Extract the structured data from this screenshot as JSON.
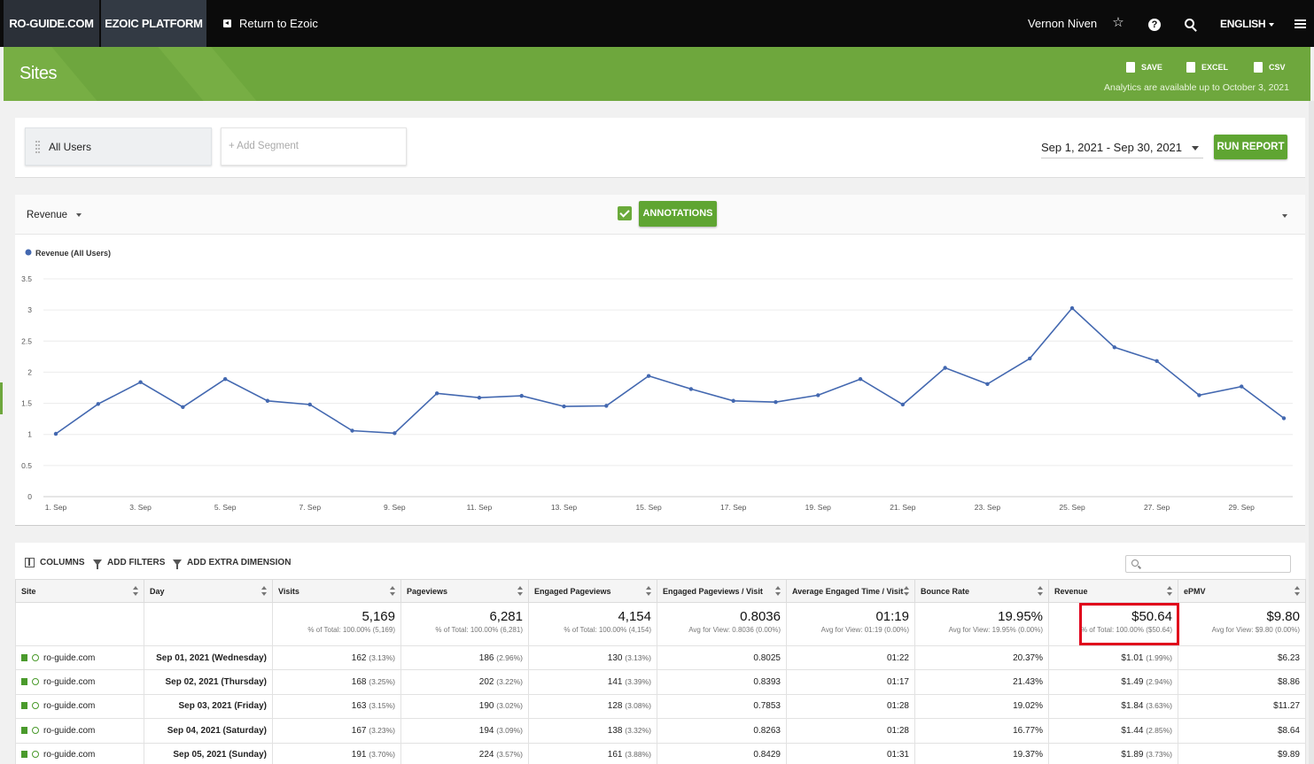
{
  "topnav": {
    "site_tab": "RO-GUIDE.COM",
    "platform_tab": "EZOIC PLATFORM",
    "return_link": "Return to Ezoic",
    "user_name": "Vernon Niven",
    "language": "ENGLISH",
    "icons": [
      "star-icon",
      "help-icon",
      "search-icon",
      "menu-icon"
    ]
  },
  "header": {
    "title": "Sites",
    "save_label": "SAVE",
    "excel_label": "EXCEL",
    "csv_label": "CSV",
    "availability": "Analytics are available up to October 3, 2021"
  },
  "segments": {
    "active": "All Users",
    "add_placeholder": "+ Add Segment",
    "date_range": "Sep 1, 2021 - Sep 30, 2021",
    "run_label": "RUN REPORT"
  },
  "chart_toolbar": {
    "metric": "Revenue",
    "annotations_label": "ANNOTATIONS",
    "annotations_checked": true
  },
  "chart_data": {
    "type": "line",
    "legend_label": "Revenue (All Users)",
    "series": [
      {
        "name": "Revenue (All Users)",
        "color": "#4368b0",
        "values": [
          1.01,
          1.49,
          1.84,
          1.44,
          1.89,
          1.54,
          1.48,
          1.06,
          1.02,
          1.66,
          1.59,
          1.62,
          1.45,
          1.46,
          1.94,
          1.73,
          1.54,
          1.52,
          1.63,
          1.89,
          1.48,
          2.07,
          1.81,
          2.22,
          3.03,
          2.4,
          2.18,
          1.63,
          1.77,
          1.26
        ]
      }
    ],
    "x_tick_labels": [
      "1. Sep",
      "3. Sep",
      "5. Sep",
      "7. Sep",
      "9. Sep",
      "11. Sep",
      "13. Sep",
      "15. Sep",
      "17. Sep",
      "19. Sep",
      "21. Sep",
      "23. Sep",
      "25. Sep",
      "27. Sep",
      "29. Sep"
    ],
    "y_ticks": [
      "0",
      "0.5",
      "1",
      "1.5",
      "2",
      "2.5",
      "3",
      "3.5"
    ],
    "ylim": [
      0,
      3.5
    ],
    "grid": true,
    "legend_position": "top-left"
  },
  "table_toolbar": {
    "columns_label": "COLUMNS",
    "filters_label": "ADD FILTERS",
    "dimension_label": "ADD EXTRA DIMENSION"
  },
  "table": {
    "headers": [
      "Site",
      "Day",
      "Visits",
      "Pageviews",
      "Engaged Pageviews",
      "Engaged Pageviews / Visit",
      "Average Engaged Time / Visit",
      "Bounce Rate",
      "Revenue",
      "ePMV"
    ],
    "totals": [
      {
        "value": "5,169",
        "sub": "% of Total: 100.00% (5,169)"
      },
      {
        "value": "6,281",
        "sub": "% of Total: 100.00% (6,281)"
      },
      {
        "value": "4,154",
        "sub": "% of Total: 100.00% (4,154)"
      },
      {
        "value": "0.8036",
        "sub": "Avg for View: 0.8036 (0.00%)"
      },
      {
        "value": "01:19",
        "sub": "Avg for View: 01:19 (0.00%)"
      },
      {
        "value": "19.95%",
        "sub": "Avg for View: 19.95% (0.00%)"
      },
      {
        "value": "$50.64",
        "sub": "% of Total: 100.00% ($50.64)"
      },
      {
        "value": "$9.80",
        "sub": "Avg for View: $9.80 (0.00%)"
      }
    ],
    "rows": [
      {
        "site": "ro-guide.com",
        "day": "Sep 01, 2021 (Wednesday)",
        "visits": "162",
        "visits_pct": "(3.13%)",
        "pageviews": "186",
        "pageviews_pct": "(2.96%)",
        "engaged": "130",
        "engaged_pct": "(3.13%)",
        "epv": "0.8025",
        "time": "01:22",
        "bounce": "20.37%",
        "revenue": "$1.01",
        "revenue_pct": "(1.99%)",
        "epmv": "$6.23"
      },
      {
        "site": "ro-guide.com",
        "day": "Sep 02, 2021 (Thursday)",
        "visits": "168",
        "visits_pct": "(3.25%)",
        "pageviews": "202",
        "pageviews_pct": "(3.22%)",
        "engaged": "141",
        "engaged_pct": "(3.39%)",
        "epv": "0.8393",
        "time": "01:17",
        "bounce": "21.43%",
        "revenue": "$1.49",
        "revenue_pct": "(2.94%)",
        "epmv": "$8.86"
      },
      {
        "site": "ro-guide.com",
        "day": "Sep 03, 2021 (Friday)",
        "visits": "163",
        "visits_pct": "(3.15%)",
        "pageviews": "190",
        "pageviews_pct": "(3.02%)",
        "engaged": "128",
        "engaged_pct": "(3.08%)",
        "epv": "0.7853",
        "time": "01:28",
        "bounce": "19.02%",
        "revenue": "$1.84",
        "revenue_pct": "(3.63%)",
        "epmv": "$11.27"
      },
      {
        "site": "ro-guide.com",
        "day": "Sep 04, 2021 (Saturday)",
        "visits": "167",
        "visits_pct": "(3.23%)",
        "pageviews": "194",
        "pageviews_pct": "(3.09%)",
        "engaged": "138",
        "engaged_pct": "(3.32%)",
        "epv": "0.8263",
        "time": "01:28",
        "bounce": "16.77%",
        "revenue": "$1.44",
        "revenue_pct": "(2.85%)",
        "epmv": "$8.64"
      },
      {
        "site": "ro-guide.com",
        "day": "Sep 05, 2021 (Sunday)",
        "visits": "191",
        "visits_pct": "(3.70%)",
        "pageviews": "224",
        "pageviews_pct": "(3.57%)",
        "engaged": "161",
        "engaged_pct": "(3.88%)",
        "epv": "0.8429",
        "time": "01:31",
        "bounce": "19.37%",
        "revenue": "$1.89",
        "revenue_pct": "(3.73%)",
        "epmv": "$9.89"
      }
    ]
  }
}
